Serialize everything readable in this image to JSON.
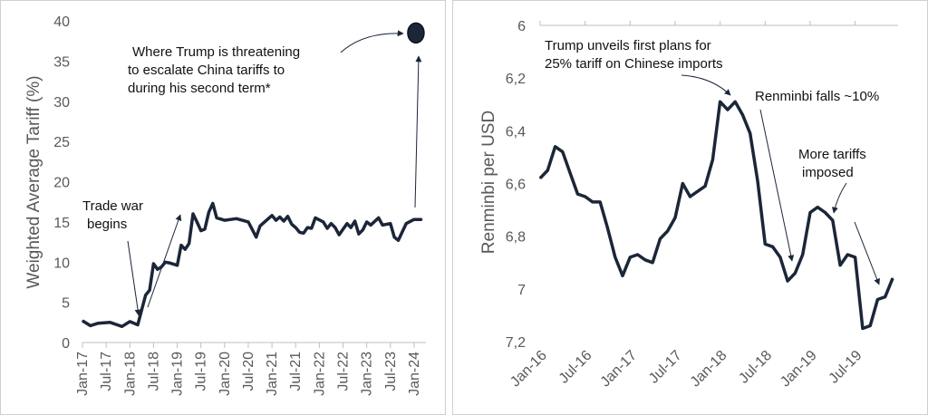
{
  "chart_data": [
    {
      "type": "line",
      "ylabel": "Weighted Average Tariff (%)",
      "ylim": [
        0,
        40
      ],
      "yticks": [
        "0",
        "5",
        "10",
        "15",
        "20",
        "25",
        "30",
        "35",
        "40"
      ],
      "xtick_labels": [
        "Jan-17",
        "Jul-17",
        "Jan-18",
        "Jul-18",
        "Jan-19",
        "Jul-19",
        "Jan-20",
        "Jul-20",
        "Jan-21",
        "Jul-21",
        "Jan-22",
        "Jul-22",
        "Jan-23",
        "Jul-23",
        "Jan-24"
      ],
      "grid": false,
      "series": [
        {
          "color": "#1b2638",
          "points": [
            [
              "2017-01",
              2.7
            ],
            [
              "2017-03",
              2.1
            ],
            [
              "2017-05",
              2.4
            ],
            [
              "2017-08",
              2.5
            ],
            [
              "2017-11",
              2.0
            ],
            [
              "2018-01",
              2.6
            ],
            [
              "2018-03",
              2.2
            ],
            [
              "2018-05",
              5.9
            ],
            [
              "2018-06",
              6.5
            ],
            [
              "2018-07",
              9.8
            ],
            [
              "2018-08",
              9.1
            ],
            [
              "2018-09",
              9.4
            ],
            [
              "2018-10",
              10.0
            ],
            [
              "2018-11",
              9.9
            ],
            [
              "2019-01",
              9.6
            ],
            [
              "2019-02",
              12.1
            ],
            [
              "2019-03",
              11.6
            ],
            [
              "2019-04",
              12.3
            ],
            [
              "2019-05",
              16.0
            ],
            [
              "2019-06",
              15.0
            ],
            [
              "2019-07",
              13.9
            ],
            [
              "2019-08",
              14.1
            ],
            [
              "2019-09",
              16.2
            ],
            [
              "2019-10",
              17.3
            ],
            [
              "2019-11",
              15.5
            ],
            [
              "2020-01",
              15.2
            ],
            [
              "2020-04",
              15.4
            ],
            [
              "2020-07",
              15.0
            ],
            [
              "2020-09",
              13.1
            ],
            [
              "2020-10",
              14.5
            ],
            [
              "2021-01",
              15.8
            ],
            [
              "2021-02",
              15.2
            ],
            [
              "2021-03",
              15.6
            ],
            [
              "2021-04",
              15.1
            ],
            [
              "2021-05",
              15.7
            ],
            [
              "2021-06",
              14.7
            ],
            [
              "2021-07",
              14.3
            ],
            [
              "2021-08",
              13.7
            ],
            [
              "2021-09",
              13.6
            ],
            [
              "2021-10",
              14.3
            ],
            [
              "2021-11",
              14.2
            ],
            [
              "2021-12",
              15.5
            ],
            [
              "2022-02",
              15.0
            ],
            [
              "2022-03",
              14.2
            ],
            [
              "2022-04",
              14.8
            ],
            [
              "2022-05",
              14.3
            ],
            [
              "2022-06",
              13.4
            ],
            [
              "2022-08",
              14.8
            ],
            [
              "2022-09",
              14.3
            ],
            [
              "2022-10",
              15.1
            ],
            [
              "2022-11",
              13.5
            ],
            [
              "2022-12",
              14.0
            ],
            [
              "2023-01",
              15.0
            ],
            [
              "2023-02",
              14.6
            ],
            [
              "2023-04",
              15.5
            ],
            [
              "2023-05",
              14.6
            ],
            [
              "2023-07",
              14.8
            ],
            [
              "2023-08",
              13.1
            ],
            [
              "2023-09",
              12.7
            ],
            [
              "2023-11",
              14.8
            ],
            [
              "2024-01",
              15.3
            ],
            [
              "2024-03",
              15.3
            ]
          ]
        }
      ],
      "highlight_marker": {
        "label": "Trump threatened tariff level",
        "x": "2024-01",
        "y": 38.5,
        "color": "#1b2638"
      },
      "annotations": {
        "trade_war_line1": "Trade war",
        "trade_war_line2": "begins",
        "trump_line1": "Where Trump is threatening",
        "trump_line2": "to escalate China tariffs to",
        "trump_line3": "during his second term*"
      }
    },
    {
      "type": "line",
      "ylabel": "Renminbi per USD",
      "ylim": [
        7.2,
        6.0
      ],
      "y_inverted": true,
      "yticks": [
        "6",
        "6,2",
        "6,4",
        "6,6",
        "6,8",
        "7",
        "7,2"
      ],
      "xtick_labels": [
        "Jan-16",
        "Jul-16",
        "Jan-17",
        "Jul-17",
        "Jan-18",
        "Jul-18",
        "Jan-19",
        "Jul-19"
      ],
      "grid": false,
      "series": [
        {
          "color": "#1b2638",
          "points": [
            [
              "2016-01",
              6.58
            ],
            [
              "2016-02",
              6.55
            ],
            [
              "2016-03",
              6.46
            ],
            [
              "2016-04",
              6.48
            ],
            [
              "2016-05",
              6.56
            ],
            [
              "2016-06",
              6.64
            ],
            [
              "2016-07",
              6.65
            ],
            [
              "2016-08",
              6.67
            ],
            [
              "2016-09",
              6.67
            ],
            [
              "2016-10",
              6.77
            ],
            [
              "2016-11",
              6.88
            ],
            [
              "2016-12",
              6.95
            ],
            [
              "2017-01",
              6.88
            ],
            [
              "2017-02",
              6.87
            ],
            [
              "2017-03",
              6.89
            ],
            [
              "2017-04",
              6.9
            ],
            [
              "2017-05",
              6.81
            ],
            [
              "2017-06",
              6.78
            ],
            [
              "2017-07",
              6.73
            ],
            [
              "2017-08",
              6.6
            ],
            [
              "2017-09",
              6.65
            ],
            [
              "2017-10",
              6.63
            ],
            [
              "2017-11",
              6.61
            ],
            [
              "2017-12",
              6.51
            ],
            [
              "2018-01",
              6.29
            ],
            [
              "2018-02",
              6.32
            ],
            [
              "2018-03",
              6.29
            ],
            [
              "2018-04",
              6.34
            ],
            [
              "2018-05",
              6.41
            ],
            [
              "2018-06",
              6.59
            ],
            [
              "2018-07",
              6.83
            ],
            [
              "2018-08",
              6.84
            ],
            [
              "2018-09",
              6.88
            ],
            [
              "2018-10",
              6.97
            ],
            [
              "2018-11",
              6.94
            ],
            [
              "2018-12",
              6.87
            ],
            [
              "2019-01",
              6.71
            ],
            [
              "2019-02",
              6.69
            ],
            [
              "2019-03",
              6.71
            ],
            [
              "2019-04",
              6.74
            ],
            [
              "2019-05",
              6.91
            ],
            [
              "2019-06",
              6.87
            ],
            [
              "2019-07",
              6.88
            ],
            [
              "2019-08",
              7.15
            ],
            [
              "2019-09",
              7.14
            ],
            [
              "2019-10",
              7.04
            ],
            [
              "2019-11",
              7.03
            ],
            [
              "2019-12",
              6.96
            ]
          ]
        }
      ],
      "annotations": {
        "plan_line1": "Trump unveils first plans for",
        "plan_line2": "25% tariff on Chinese imports",
        "falls": "Renminbi falls ~10%",
        "more_line1": "More tariffs",
        "more_line2": "imposed"
      }
    }
  ]
}
